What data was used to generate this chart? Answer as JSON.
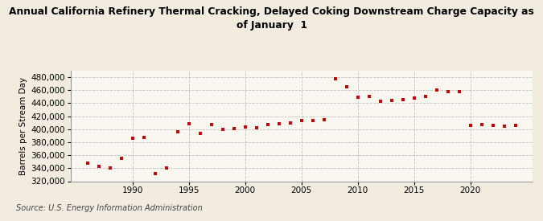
{
  "title": "Annual California Refinery Thermal Cracking, Delayed Coking Downstream Charge Capacity as\nof January  1",
  "ylabel": "Barrels per Stream Day",
  "source": "Source: U.S. Energy Information Administration",
  "background_color": "#f2ece0",
  "plot_background_color": "#faf7f0",
  "marker_color": "#cc0000",
  "grid_color": "#bbbbbb",
  "years": [
    1986,
    1987,
    1988,
    1989,
    1990,
    1991,
    1992,
    1993,
    1994,
    1995,
    1996,
    1997,
    1998,
    1999,
    2000,
    2001,
    2002,
    2003,
    2004,
    2005,
    2006,
    2007,
    2008,
    2009,
    2010,
    2011,
    2012,
    2013,
    2014,
    2015,
    2016,
    2017,
    2018,
    2019,
    2020,
    2021,
    2022,
    2023,
    2024
  ],
  "values": [
    348000,
    343000,
    341000,
    355000,
    386000,
    388000,
    332000,
    340000,
    396000,
    408000,
    394000,
    407000,
    400000,
    401000,
    403000,
    402000,
    407000,
    408000,
    410000,
    413000,
    413000,
    415000,
    478000,
    465000,
    449000,
    450000,
    443000,
    444000,
    446000,
    448000,
    451000,
    460000,
    458000,
    458000,
    406000,
    407000,
    406000,
    405000,
    406000
  ],
  "ylim": [
    320000,
    490000
  ],
  "yticks": [
    320000,
    340000,
    360000,
    380000,
    400000,
    420000,
    440000,
    460000,
    480000
  ],
  "xticks": [
    1990,
    1995,
    2000,
    2005,
    2010,
    2015,
    2020
  ],
  "xlim": [
    1984.5,
    2025.5
  ]
}
